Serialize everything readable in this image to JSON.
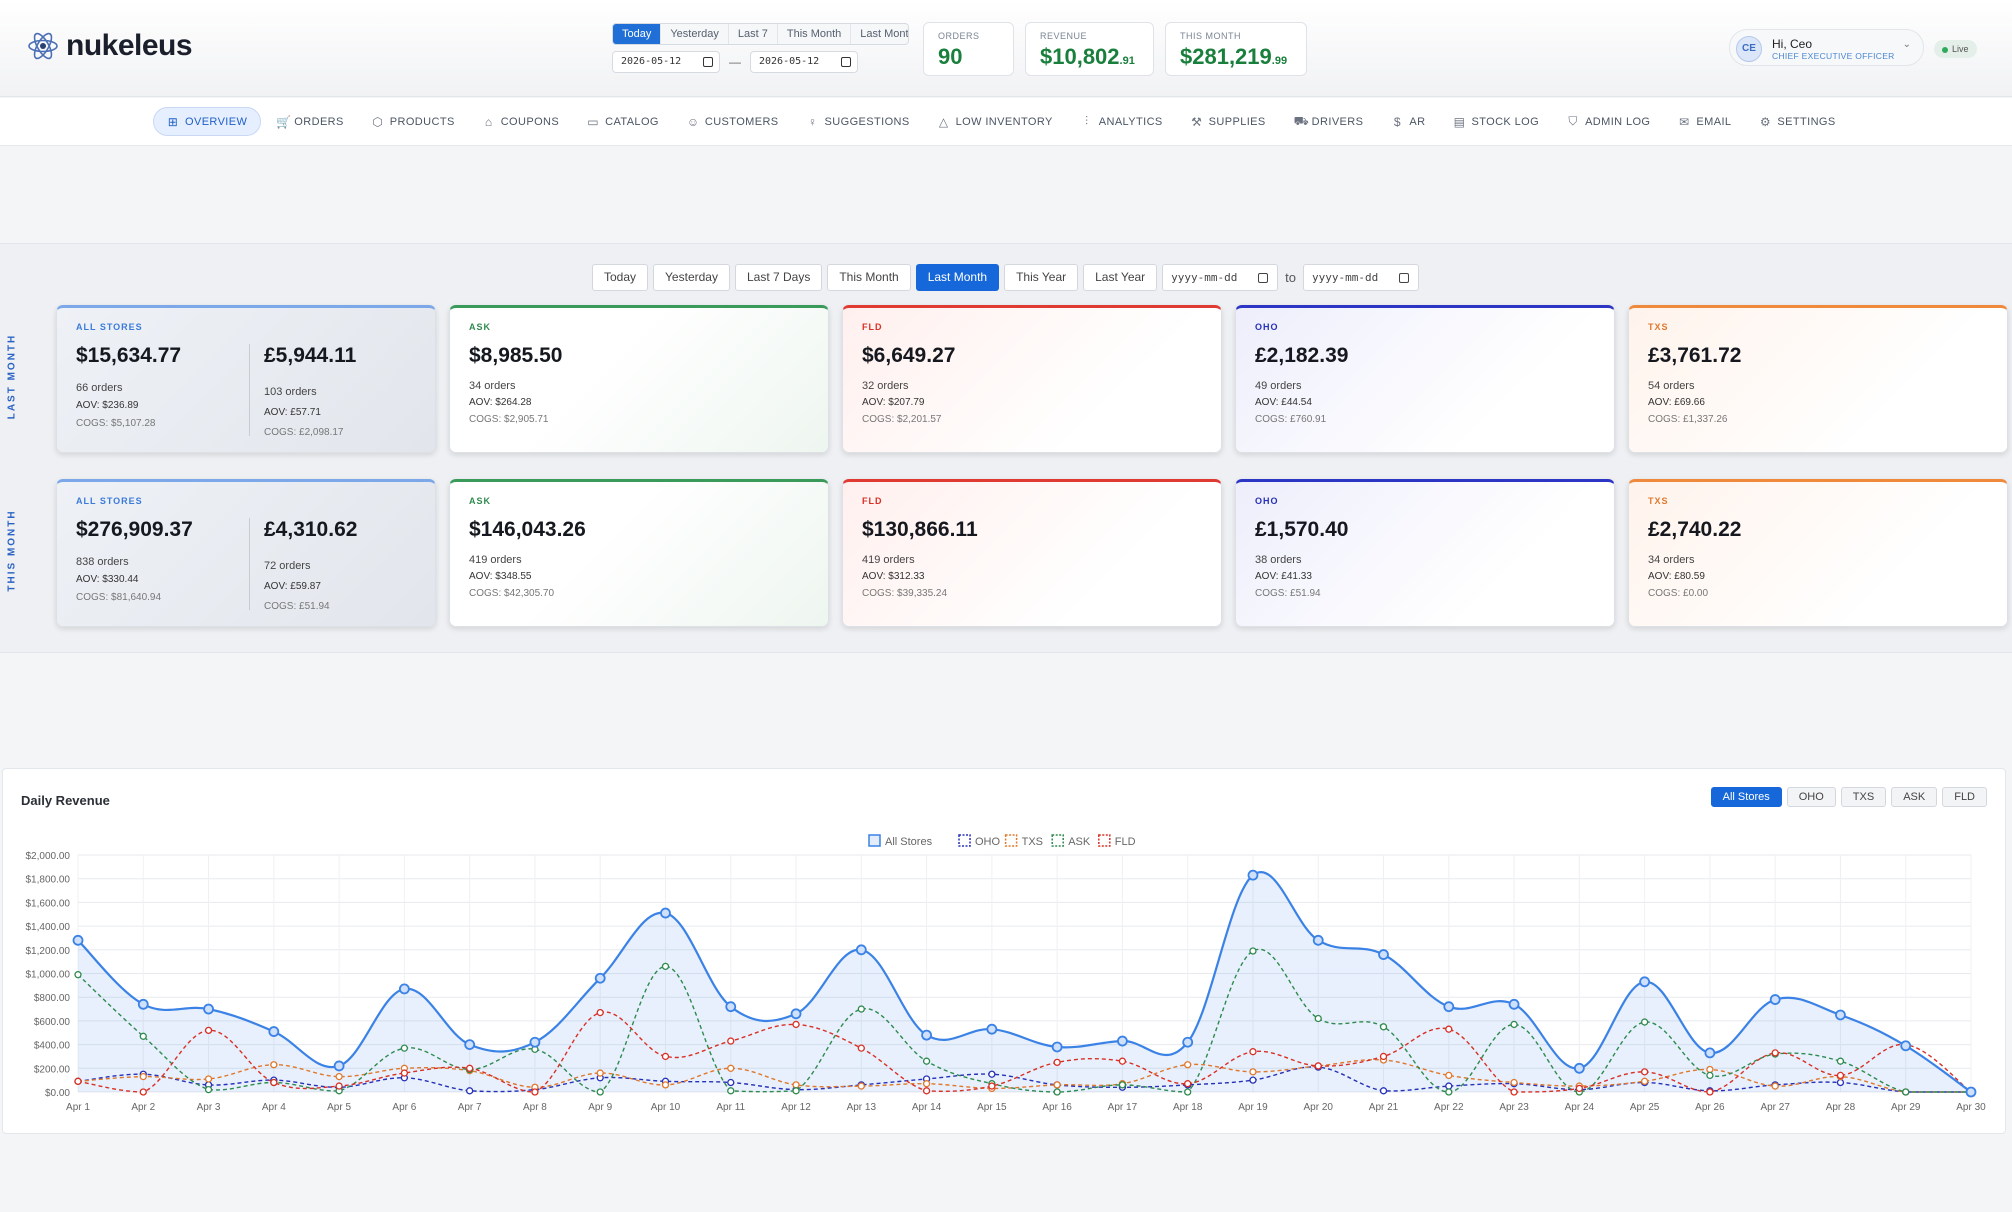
{
  "brand": {
    "name": "nukeleus"
  },
  "header": {
    "quick_ranges": [
      "Today",
      "Yesterday",
      "Last 7",
      "This Month",
      "Last Month"
    ],
    "active_range": "Today",
    "date_from": "2026-05-12",
    "date_to": "2026-05-12",
    "date_sep": "—",
    "stats": [
      {
        "label": "ORDERS",
        "value": "90",
        "decimals": ""
      },
      {
        "label": "REVENUE",
        "value": "$10,802",
        "decimals": ".91"
      },
      {
        "label": "THIS MONTH",
        "value": "$281,219",
        "decimals": ".99"
      }
    ],
    "user": {
      "initials": "CE",
      "greeting": "Hi, Ceo",
      "role": "CHIEF EXECUTIVE OFFICER"
    },
    "live_label": "Live"
  },
  "nav": [
    {
      "label": "OVERVIEW",
      "icon": "grid-icon",
      "glyph": "⊞",
      "active": true
    },
    {
      "label": "ORDERS",
      "icon": "cart-icon",
      "glyph": "🛒"
    },
    {
      "label": "PRODUCTS",
      "icon": "box-icon",
      "glyph": "⬡"
    },
    {
      "label": "COUPONS",
      "icon": "tag-icon",
      "glyph": "⌂"
    },
    {
      "label": "CATALOG",
      "icon": "book-icon",
      "glyph": "▭"
    },
    {
      "label": "CUSTOMERS",
      "icon": "users-icon",
      "glyph": "☺"
    },
    {
      "label": "SUGGESTIONS",
      "icon": "bulb-icon",
      "glyph": "♀"
    },
    {
      "label": "LOW INVENTORY",
      "icon": "warning-icon",
      "glyph": "△"
    },
    {
      "label": "ANALYTICS",
      "icon": "bar-chart-icon",
      "glyph": "⫶"
    },
    {
      "label": "SUPPLIES",
      "icon": "wrench-icon",
      "glyph": "⚒"
    },
    {
      "label": "DRIVERS",
      "icon": "truck-icon",
      "glyph": "⛟"
    },
    {
      "label": "AR",
      "icon": "dollar-icon",
      "glyph": "$"
    },
    {
      "label": "STOCK LOG",
      "icon": "clipboard-icon",
      "glyph": "▤"
    },
    {
      "label": "ADMIN LOG",
      "icon": "shield-icon",
      "glyph": "⛉"
    },
    {
      "label": "EMAIL",
      "icon": "mail-icon",
      "glyph": "✉"
    },
    {
      "label": "SETTINGS",
      "icon": "gear-icon",
      "glyph": "⚙"
    }
  ],
  "summary": {
    "ranges": [
      "Today",
      "Yesterday",
      "Last 7 Days",
      "This Month",
      "Last Month",
      "This Year",
      "Last Year"
    ],
    "active_range": "Last Month",
    "date_placeholder": "yyyy-mm-dd",
    "to_label": "to",
    "rows": [
      {
        "label": "LAST MONTH",
        "all": {
          "name": "ALL STORES",
          "total": "$15,634.77",
          "orders": "66 orders",
          "aov": "AOV: $236.89",
          "cogs": "COGS: $5,107.28",
          "gbp_total": "£5,944.11",
          "gbp_orders": "103 orders",
          "gbp_aov": "AOV: £57.71",
          "gbp_cogs": "COGS: £2,098.17"
        },
        "stores": [
          {
            "name": "ASK",
            "total": "$8,985.50",
            "orders": "34 orders",
            "aov": "AOV: $264.28",
            "cogs": "COGS: $2,905.71"
          },
          {
            "name": "FLD",
            "total": "$6,649.27",
            "orders": "32 orders",
            "aov": "AOV: $207.79",
            "cogs": "COGS: $2,201.57"
          },
          {
            "name": "OHO",
            "total": "£2,182.39",
            "orders": "49 orders",
            "aov": "AOV: £44.54",
            "cogs": "COGS: £760.91"
          },
          {
            "name": "TXS",
            "total": "£3,761.72",
            "orders": "54 orders",
            "aov": "AOV: £69.66",
            "cogs": "COGS: £1,337.26"
          }
        ]
      },
      {
        "label": "THIS MONTH",
        "all": {
          "name": "ALL STORES",
          "total": "$276,909.37",
          "orders": "838 orders",
          "aov": "AOV: $330.44",
          "cogs": "COGS: $81,640.94",
          "gbp_total": "£4,310.62",
          "gbp_orders": "72 orders",
          "gbp_aov": "AOV: £59.87",
          "gbp_cogs": "COGS: £51.94"
        },
        "stores": [
          {
            "name": "ASK",
            "total": "$146,043.26",
            "orders": "419 orders",
            "aov": "AOV: $348.55",
            "cogs": "COGS: $42,305.70"
          },
          {
            "name": "FLD",
            "total": "$130,866.11",
            "orders": "419 orders",
            "aov": "AOV: $312.33",
            "cogs": "COGS: $39,335.24"
          },
          {
            "name": "OHO",
            "total": "£1,570.40",
            "orders": "38 orders",
            "aov": "AOV: £41.33",
            "cogs": "COGS: £51.94"
          },
          {
            "name": "TXS",
            "total": "£2,740.22",
            "orders": "34 orders",
            "aov": "AOV: £80.59",
            "cogs": "COGS: £0.00"
          }
        ]
      }
    ]
  },
  "store_colors": {
    "ASK": "#2f8a4e",
    "FLD": "#d93025",
    "OHO": "#2630b8",
    "TXS": "#e0782c",
    "ALL": "#3b82e6"
  },
  "chart_panel": {
    "title": "Daily Revenue",
    "filters": [
      "All Stores",
      "OHO",
      "TXS",
      "ASK",
      "FLD"
    ],
    "active_filter": "All Stores"
  },
  "chart_data": {
    "type": "line",
    "title": "Daily Revenue",
    "categories": [
      "Apr 1",
      "Apr 2",
      "Apr 3",
      "Apr 4",
      "Apr 5",
      "Apr 6",
      "Apr 7",
      "Apr 8",
      "Apr 9",
      "Apr 10",
      "Apr 11",
      "Apr 12",
      "Apr 13",
      "Apr 14",
      "Apr 15",
      "Apr 16",
      "Apr 17",
      "Apr 18",
      "Apr 19",
      "Apr 20",
      "Apr 21",
      "Apr 22",
      "Apr 23",
      "Apr 24",
      "Apr 25",
      "Apr 26",
      "Apr 27",
      "Apr 28",
      "Apr 29",
      "Apr 30"
    ],
    "ylim": [
      0,
      2000
    ],
    "y_ticks": [
      "$0.00",
      "$200.00",
      "$400.00",
      "$600.00",
      "$800.00",
      "$1,000.00",
      "$1,200.00",
      "$1,400.00",
      "$1,600.00",
      "$1,800.00",
      "$2,000.00"
    ],
    "legend_position": "top-center",
    "grid": true,
    "series": [
      {
        "name": "All Stores",
        "color": "#3b82e6",
        "style": "solid",
        "fill": true,
        "values": [
          1280,
          740,
          700,
          510,
          220,
          870,
          400,
          420,
          960,
          1510,
          720,
          660,
          1200,
          480,
          530,
          380,
          430,
          420,
          1830,
          1280,
          1160,
          720,
          740,
          200,
          930,
          330,
          780,
          650,
          390,
          0
        ]
      },
      {
        "name": "OHO",
        "color": "#2630b8",
        "style": "dashed",
        "values": [
          90,
          150,
          60,
          100,
          40,
          120,
          10,
          20,
          120,
          90,
          80,
          20,
          60,
          110,
          150,
          60,
          40,
          60,
          100,
          210,
          10,
          50,
          70,
          20,
          80,
          10,
          60,
          80,
          0,
          0
        ]
      },
      {
        "name": "TXS",
        "color": "#e0782c",
        "style": "dashed",
        "values": [
          90,
          130,
          110,
          230,
          130,
          200,
          180,
          40,
          160,
          60,
          200,
          60,
          50,
          70,
          30,
          60,
          70,
          230,
          170,
          220,
          270,
          140,
          80,
          50,
          90,
          190,
          50,
          130,
          0,
          0
        ]
      },
      {
        "name": "ASK",
        "color": "#2f8a4e",
        "style": "dashed",
        "values": [
          990,
          470,
          20,
          80,
          10,
          370,
          190,
          360,
          0,
          1060,
          10,
          10,
          700,
          260,
          70,
          0,
          60,
          0,
          1190,
          620,
          550,
          0,
          570,
          0,
          590,
          140,
          320,
          260,
          0,
          0
        ]
      },
      {
        "name": "FLD",
        "color": "#d93025",
        "style": "dashed",
        "values": [
          90,
          0,
          520,
          80,
          50,
          160,
          200,
          0,
          670,
          300,
          430,
          570,
          370,
          10,
          50,
          250,
          260,
          70,
          340,
          220,
          300,
          530,
          0,
          30,
          170,
          0,
          330,
          140,
          400,
          0
        ]
      }
    ]
  }
}
